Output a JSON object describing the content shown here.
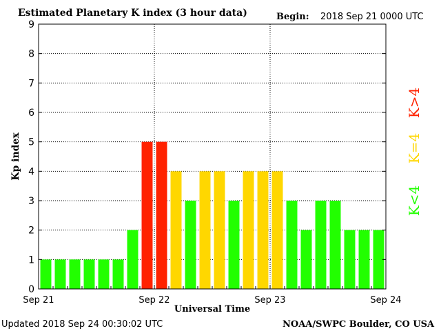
{
  "header": {
    "title": "Estimated Planetary K index (3 hour data)",
    "begin_label": "Begin:",
    "begin_value": "2018 Sep 21 0000 UTC"
  },
  "footer": {
    "updated": "Updated 2018 Sep 24 00:30:02 UTC",
    "credit": "NOAA/SWPC Boulder, CO USA"
  },
  "legend": {
    "high": "K>4",
    "mid": "K=4",
    "low": "K<4"
  },
  "colors": {
    "low": "#22ff00",
    "mid": "#ffd700",
    "high": "#ff2200",
    "axis": "#000000",
    "grid": "#000000"
  },
  "chart_data": {
    "type": "bar",
    "xlabel": "Universal Time",
    "ylabel": "Kp index",
    "ylim": [
      0,
      9
    ],
    "yticks": [
      0,
      1,
      2,
      3,
      4,
      5,
      6,
      7,
      8,
      9
    ],
    "xticks": [
      "Sep 21",
      "Sep 22",
      "Sep 23",
      "Sep 24"
    ],
    "grid": true,
    "bars_per_day": 8,
    "values": [
      1,
      1,
      1,
      1,
      1,
      1,
      2,
      5,
      5,
      4,
      3,
      4,
      4,
      3,
      4,
      4,
      4,
      3,
      2,
      3,
      3,
      2,
      2,
      2
    ]
  }
}
